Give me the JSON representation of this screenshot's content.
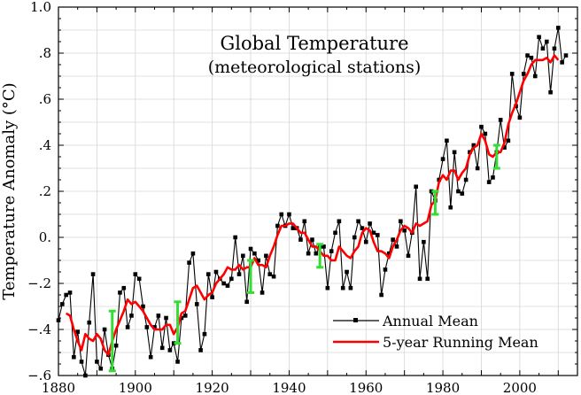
{
  "chart_data": {
    "type": "line",
    "title": "Global Temperature",
    "subtitle": "(meteorological stations)",
    "xlabel": "",
    "ylabel": "Temperature Anomaly (°C)",
    "xlim": [
      1880,
      2015
    ],
    "ylim": [
      -0.6,
      1.0
    ],
    "grid": true,
    "legend_position": "bottom-right",
    "x_ticks": [
      1880,
      1900,
      1920,
      1940,
      1960,
      1980,
      2000
    ],
    "x_tick_labels": [
      "1880",
      "1900",
      "1920",
      "1940",
      "1960",
      "1980",
      "2000"
    ],
    "y_ticks": [
      -0.6,
      -0.4,
      -0.2,
      0.0,
      0.2,
      0.4,
      0.6,
      0.8,
      1.0
    ],
    "y_tick_labels": [
      "−.6",
      "−.4",
      "−.2",
      "0.",
      ".2",
      ".4",
      ".6",
      ".8",
      "1.0"
    ],
    "series": [
      {
        "name": "Annual Mean",
        "color": "#000000",
        "marker": "square",
        "x": [
          1880,
          1881,
          1882,
          1883,
          1884,
          1885,
          1886,
          1887,
          1888,
          1889,
          1890,
          1891,
          1892,
          1893,
          1894,
          1895,
          1896,
          1897,
          1898,
          1899,
          1900,
          1901,
          1902,
          1903,
          1904,
          1905,
          1906,
          1907,
          1908,
          1909,
          1910,
          1911,
          1912,
          1913,
          1914,
          1915,
          1916,
          1917,
          1918,
          1919,
          1920,
          1921,
          1922,
          1923,
          1924,
          1925,
          1926,
          1927,
          1928,
          1929,
          1930,
          1931,
          1932,
          1933,
          1934,
          1935,
          1936,
          1937,
          1938,
          1939,
          1940,
          1941,
          1942,
          1943,
          1944,
          1945,
          1946,
          1947,
          1948,
          1949,
          1950,
          1951,
          1952,
          1953,
          1954,
          1955,
          1956,
          1957,
          1958,
          1959,
          1960,
          1961,
          1962,
          1963,
          1964,
          1965,
          1966,
          1967,
          1968,
          1969,
          1970,
          1971,
          1972,
          1973,
          1974,
          1975,
          1976,
          1977,
          1978,
          1979,
          1980,
          1981,
          1982,
          1983,
          1984,
          1985,
          1986,
          1987,
          1988,
          1989,
          1990,
          1991,
          1992,
          1993,
          1994,
          1995,
          1996,
          1997,
          1998,
          1999,
          2000,
          2001,
          2002,
          2003,
          2004,
          2005,
          2006,
          2007,
          2008,
          2009,
          2010,
          2011,
          2012
        ],
        "values": [
          -0.36,
          -0.29,
          -0.25,
          -0.24,
          -0.52,
          -0.41,
          -0.54,
          -0.6,
          -0.37,
          -0.16,
          -0.54,
          -0.57,
          -0.4,
          -0.51,
          -0.57,
          -0.47,
          -0.24,
          -0.22,
          -0.39,
          -0.34,
          -0.16,
          -0.18,
          -0.3,
          -0.39,
          -0.52,
          -0.39,
          -0.34,
          -0.48,
          -0.35,
          -0.49,
          -0.46,
          -0.54,
          -0.35,
          -0.34,
          -0.11,
          -0.07,
          -0.29,
          -0.49,
          -0.42,
          -0.16,
          -0.26,
          -0.15,
          -0.18,
          -0.2,
          -0.21,
          -0.18,
          0.0,
          -0.16,
          -0.08,
          -0.28,
          -0.05,
          -0.07,
          -0.1,
          -0.24,
          -0.08,
          -0.16,
          -0.17,
          0.05,
          0.1,
          0.05,
          0.1,
          0.04,
          0.04,
          -0.01,
          0.07,
          -0.07,
          -0.01,
          -0.07,
          -0.04,
          -0.04,
          -0.22,
          -0.06,
          0.02,
          0.07,
          -0.22,
          -0.15,
          -0.22,
          0.0,
          0.07,
          0.04,
          -0.02,
          0.06,
          0.02,
          0.01,
          -0.25,
          -0.14,
          -0.07,
          -0.01,
          -0.04,
          0.07,
          0.03,
          -0.08,
          0.02,
          0.22,
          -0.18,
          -0.02,
          -0.18,
          0.2,
          0.16,
          0.25,
          0.34,
          0.42,
          0.13,
          0.37,
          0.2,
          0.19,
          0.25,
          0.37,
          0.4,
          0.3,
          0.48,
          0.45,
          0.24,
          0.26,
          0.37,
          0.51,
          0.39,
          0.42,
          0.71,
          0.57,
          0.52,
          0.71,
          0.79,
          0.78,
          0.7,
          0.87,
          0.82,
          0.85,
          0.63,
          0.82,
          0.91,
          0.76,
          0.79
        ]
      },
      {
        "name": "5-year Running Mean",
        "color": "#ff0000",
        "x": [
          1882,
          1883,
          1884,
          1885,
          1886,
          1887,
          1888,
          1889,
          1890,
          1891,
          1892,
          1893,
          1894,
          1895,
          1896,
          1897,
          1898,
          1899,
          1900,
          1901,
          1902,
          1903,
          1904,
          1905,
          1906,
          1907,
          1908,
          1909,
          1910,
          1911,
          1912,
          1913,
          1914,
          1915,
          1916,
          1917,
          1918,
          1919,
          1920,
          1921,
          1922,
          1923,
          1924,
          1925,
          1926,
          1927,
          1928,
          1929,
          1930,
          1931,
          1932,
          1933,
          1934,
          1935,
          1936,
          1937,
          1938,
          1939,
          1940,
          1941,
          1942,
          1943,
          1944,
          1945,
          1946,
          1947,
          1948,
          1949,
          1950,
          1951,
          1952,
          1953,
          1954,
          1955,
          1956,
          1957,
          1958,
          1959,
          1960,
          1961,
          1962,
          1963,
          1964,
          1965,
          1966,
          1967,
          1968,
          1969,
          1970,
          1971,
          1972,
          1973,
          1974,
          1975,
          1976,
          1977,
          1978,
          1979,
          1980,
          1981,
          1982,
          1983,
          1984,
          1985,
          1986,
          1987,
          1988,
          1989,
          1990,
          1991,
          1992,
          1993,
          1994,
          1995,
          1996,
          1997,
          1998,
          1999,
          2000,
          2001,
          2002,
          2003,
          2004,
          2005,
          2006,
          2007,
          2008,
          2009,
          2010
        ],
        "values": [
          -0.33,
          -0.34,
          -0.4,
          -0.45,
          -0.49,
          -0.42,
          -0.44,
          -0.45,
          -0.42,
          -0.44,
          -0.49,
          -0.51,
          -0.45,
          -0.4,
          -0.36,
          -0.32,
          -0.27,
          -0.29,
          -0.28,
          -0.3,
          -0.32,
          -0.35,
          -0.38,
          -0.4,
          -0.4,
          -0.4,
          -0.38,
          -0.38,
          -0.42,
          -0.39,
          -0.33,
          -0.32,
          -0.27,
          -0.22,
          -0.21,
          -0.24,
          -0.27,
          -0.25,
          -0.24,
          -0.2,
          -0.18,
          -0.16,
          -0.13,
          -0.14,
          -0.14,
          -0.12,
          -0.14,
          -0.13,
          -0.13,
          -0.09,
          -0.12,
          -0.12,
          -0.13,
          -0.08,
          -0.04,
          0.01,
          0.05,
          0.05,
          0.06,
          0.06,
          0.04,
          0.02,
          0.02,
          -0.01,
          -0.04,
          -0.04,
          -0.06,
          -0.08,
          -0.08,
          -0.1,
          -0.1,
          -0.04,
          -0.06,
          -0.08,
          -0.09,
          -0.06,
          -0.04,
          0.02,
          0.04,
          0.03,
          -0.02,
          -0.06,
          -0.06,
          -0.07,
          -0.09,
          -0.04,
          -0.01,
          0.03,
          0.05,
          0.04,
          0.02,
          0.06,
          0.05,
          0.06,
          0.07,
          0.14,
          0.16,
          0.24,
          0.27,
          0.25,
          0.29,
          0.29,
          0.25,
          0.28,
          0.3,
          0.36,
          0.39,
          0.4,
          0.45,
          0.42,
          0.36,
          0.35,
          0.37,
          0.37,
          0.41,
          0.49,
          0.54,
          0.58,
          0.63,
          0.68,
          0.71,
          0.75,
          0.77,
          0.77,
          0.77,
          0.78,
          0.76,
          0.79,
          0.77
        ]
      }
    ],
    "error_bars": {
      "color": "#33dd33",
      "items": [
        {
          "x": 1894,
          "low": -0.58,
          "high": -0.32
        },
        {
          "x": 1911,
          "low": -0.46,
          "high": -0.28
        },
        {
          "x": 1930,
          "low": -0.24,
          "high": -0.1
        },
        {
          "x": 1948,
          "low": -0.13,
          "high": -0.03
        },
        {
          "x": 1978,
          "low": 0.1,
          "high": 0.2
        },
        {
          "x": 1994,
          "low": 0.3,
          "high": 0.4
        }
      ]
    }
  }
}
